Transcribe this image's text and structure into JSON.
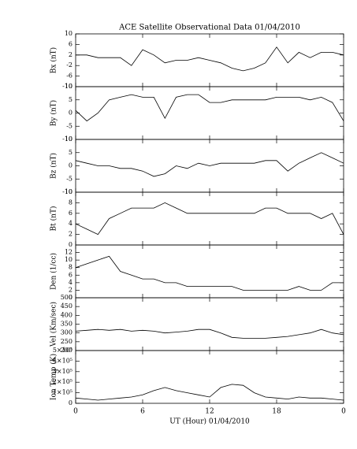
{
  "chart_data": [
    {
      "type": "line",
      "title": "ACE Satellite Observational Data   01/04/2010",
      "ylabel": "Bx (nT)",
      "color": "#000000",
      "x": [
        0,
        1,
        2,
        3,
        4,
        5,
        6,
        7,
        8,
        9,
        10,
        11,
        12,
        13,
        14,
        15,
        16,
        17,
        18,
        19,
        20,
        21,
        22,
        23,
        24
      ],
      "values": [
        2,
        2,
        1,
        1,
        1,
        -2,
        4,
        2,
        -1,
        0,
        0,
        1,
        0,
        -1,
        -3,
        -4,
        -3,
        -1,
        5,
        -1,
        3,
        1,
        3,
        3,
        2
      ],
      "xlim": [
        0,
        24
      ],
      "xticks": [
        0,
        6,
        12,
        18,
        {
          "value": 24,
          "label": "0"
        }
      ],
      "ylim": [
        -10,
        10
      ],
      "yticks": [
        10,
        6,
        2,
        -2,
        -6,
        -10
      ]
    },
    {
      "type": "line",
      "ylabel": "By (nT)",
      "color": "#000000",
      "x": [
        0,
        1,
        2,
        3,
        4,
        5,
        6,
        7,
        8,
        9,
        10,
        11,
        12,
        13,
        14,
        15,
        16,
        17,
        18,
        19,
        20,
        21,
        22,
        23,
        24
      ],
      "values": [
        1,
        -3,
        0,
        5,
        6,
        7,
        6,
        6,
        -2,
        6,
        7,
        7,
        4,
        4,
        5,
        5,
        5,
        5,
        6,
        6,
        6,
        5,
        6,
        4,
        -3
      ],
      "xlim": [
        0,
        24
      ],
      "ylim": [
        -10,
        10
      ],
      "yticks": [
        10,
        5,
        0,
        -5,
        -10
      ]
    },
    {
      "type": "line",
      "ylabel": "Bz (nT)",
      "color": "#000000",
      "x": [
        0,
        1,
        2,
        3,
        4,
        5,
        6,
        7,
        8,
        9,
        10,
        11,
        12,
        13,
        14,
        15,
        16,
        17,
        18,
        19,
        20,
        21,
        22,
        23,
        24
      ],
      "values": [
        2,
        1,
        0,
        0,
        -1,
        -1,
        -2,
        -4,
        -3,
        0,
        -1,
        1,
        0,
        1,
        1,
        1,
        1,
        2,
        2,
        -2,
        1,
        3,
        5,
        3,
        1
      ],
      "xlim": [
        0,
        24
      ],
      "ylim": [
        -10,
        10
      ],
      "yticks": [
        10,
        5,
        0,
        -5,
        -10
      ]
    },
    {
      "type": "line",
      "ylabel": "Bt (nT)",
      "color": "#000000",
      "x": [
        0,
        1,
        2,
        3,
        4,
        5,
        6,
        7,
        8,
        9,
        10,
        11,
        12,
        13,
        14,
        15,
        16,
        17,
        18,
        19,
        20,
        21,
        22,
        23,
        24
      ],
      "values": [
        4,
        3,
        2,
        5,
        6,
        7,
        7,
        7,
        8,
        7,
        6,
        6,
        6,
        6,
        6,
        6,
        6,
        7,
        7,
        6,
        6,
        6,
        5,
        6,
        2
      ],
      "xlim": [
        0,
        24
      ],
      "ylim": [
        0,
        10
      ],
      "yticks": [
        10,
        8,
        6,
        4,
        2,
        0
      ]
    },
    {
      "type": "line",
      "ylabel": "Den (1/cc)",
      "color": "#000000",
      "x": [
        0,
        1,
        2,
        3,
        4,
        5,
        6,
        7,
        8,
        9,
        10,
        11,
        12,
        13,
        14,
        15,
        16,
        17,
        18,
        19,
        20,
        21,
        22,
        23,
        24
      ],
      "values": [
        8,
        9,
        10,
        11,
        7,
        6,
        5,
        5,
        4,
        4,
        3,
        3,
        3,
        3,
        3,
        2,
        2,
        2,
        2,
        2,
        3,
        2,
        2,
        4,
        4
      ],
      "xlim": [
        0,
        24
      ],
      "ylim": [
        0,
        14
      ],
      "yticks": [
        12,
        10,
        8,
        6,
        4,
        2,
        0
      ]
    },
    {
      "type": "line",
      "ylabel": "Vel (Km/sec)",
      "color": "#000000",
      "x": [
        0,
        1,
        2,
        3,
        4,
        5,
        6,
        7,
        8,
        9,
        10,
        11,
        12,
        13,
        14,
        15,
        16,
        17,
        18,
        19,
        20,
        21,
        22,
        23,
        24
      ],
      "values": [
        310,
        315,
        320,
        315,
        320,
        310,
        315,
        310,
        300,
        305,
        310,
        320,
        320,
        300,
        275,
        270,
        270,
        270,
        275,
        280,
        290,
        300,
        320,
        300,
        290
      ],
      "xlim": [
        0,
        24
      ],
      "ylim": [
        200,
        500
      ],
      "yticks": [
        500,
        450,
        400,
        350,
        300,
        250,
        200
      ]
    },
    {
      "type": "line",
      "ylabel": "Ion Temp (K)",
      "xlabel": "UT (Hour)   01/04/2010",
      "color": "#000000",
      "x": [
        0,
        1,
        2,
        3,
        4,
        5,
        6,
        7,
        8,
        9,
        10,
        11,
        12,
        13,
        14,
        15,
        16,
        17,
        18,
        19,
        20,
        21,
        22,
        23,
        24
      ],
      "values": [
        50000,
        40000,
        30000,
        40000,
        50000,
        60000,
        80000,
        120000,
        150000,
        120000,
        100000,
        80000,
        60000,
        150000,
        180000,
        170000,
        100000,
        60000,
        50000,
        40000,
        60000,
        50000,
        50000,
        40000,
        30000
      ],
      "xlim": [
        0,
        24
      ],
      "xticks": [
        0,
        6,
        12,
        18,
        {
          "value": 24,
          "label": "0"
        }
      ],
      "ylim": [
        0,
        500000
      ],
      "yticks": [
        {
          "value": 500000,
          "label": "5×10⁵"
        },
        {
          "value": 400000,
          "label": "4×10⁵"
        },
        {
          "value": 300000,
          "label": "3×10⁵"
        },
        {
          "value": 200000,
          "label": "2×10⁵"
        },
        {
          "value": 100000,
          "label": "1×10⁵"
        },
        0
      ]
    }
  ]
}
